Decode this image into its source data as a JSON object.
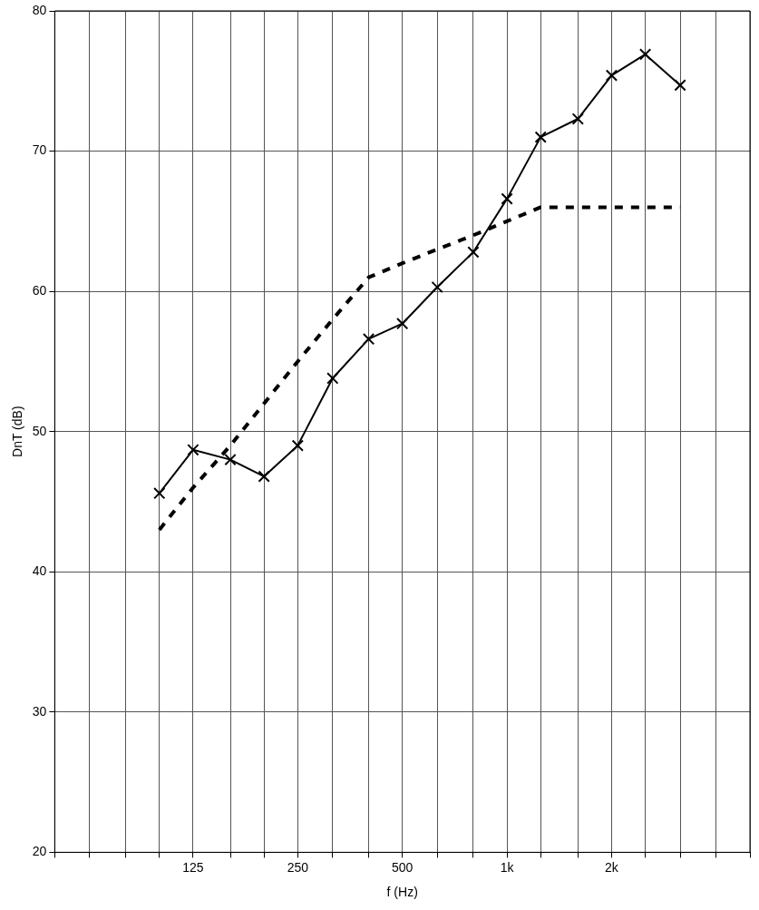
{
  "chart_data": {
    "type": "line",
    "xlabel": "f (Hz)",
    "ylabel": "DnT (dB)",
    "log": "x",
    "xlim": [
      50,
      5000
    ],
    "xticks": [
      {
        "value": 50,
        "label": null
      },
      {
        "value": 63,
        "label": null
      },
      {
        "value": 80,
        "label": null
      },
      {
        "value": 100,
        "label": null
      },
      {
        "value": 125,
        "label": "125"
      },
      {
        "value": 160,
        "label": null
      },
      {
        "value": 200,
        "label": null
      },
      {
        "value": 250,
        "label": "250"
      },
      {
        "value": 315,
        "label": null
      },
      {
        "value": 400,
        "label": null
      },
      {
        "value": 500,
        "label": "500"
      },
      {
        "value": 630,
        "label": null
      },
      {
        "value": 800,
        "label": null
      },
      {
        "value": 1000,
        "label": "1k"
      },
      {
        "value": 1250,
        "label": null
      },
      {
        "value": 1600,
        "label": null
      },
      {
        "value": 2000,
        "label": "2k"
      },
      {
        "value": 2500,
        "label": null
      },
      {
        "value": 3150,
        "label": null
      },
      {
        "value": 4000,
        "label": null
      },
      {
        "value": 5000,
        "label": null
      }
    ],
    "ylim": [
      20,
      80
    ],
    "yticks": [
      20,
      30,
      40,
      50,
      60,
      70,
      80
    ],
    "grid": true,
    "legend": false,
    "series": [
      {
        "color": "#000000",
        "marker": "cross",
        "line_style": "solid",
        "x": [
          100,
          125,
          160,
          200,
          250,
          315,
          400,
          500,
          630,
          800,
          1000,
          1250,
          1600,
          2000,
          2500,
          3150
        ],
        "values": [
          45.6,
          48.7,
          48.0,
          46.8,
          49.0,
          53.8,
          56.6,
          57.7,
          60.3,
          62.8,
          66.6,
          71.0,
          72.3,
          75.4,
          76.9,
          74.7
        ]
      },
      {
        "color": "#000000",
        "marker": "none",
        "line_style": "dashed",
        "x": [
          100,
          125,
          160,
          200,
          250,
          315,
          400,
          500,
          630,
          800,
          1000,
          1250,
          1600,
          2000,
          2500,
          3150
        ],
        "values": [
          43,
          46,
          49,
          52,
          55,
          58,
          61,
          62,
          63,
          64,
          65,
          66,
          66,
          66,
          66,
          66
        ]
      }
    ]
  }
}
